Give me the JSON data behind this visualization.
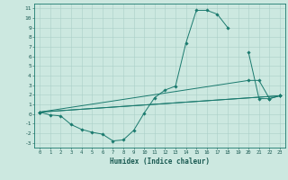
{
  "xlabel": "Humidex (Indice chaleur)",
  "bg_color": "#cce8e0",
  "grid_color": "#aacfc8",
  "line_color": "#1a7a6e",
  "xlim": [
    -0.5,
    23.5
  ],
  "ylim": [
    -3.5,
    11.5
  ],
  "xticks": [
    0,
    1,
    2,
    3,
    4,
    5,
    6,
    7,
    8,
    9,
    10,
    11,
    12,
    13,
    14,
    15,
    16,
    17,
    18,
    19,
    20,
    21,
    22,
    23
  ],
  "yticks": [
    -3,
    -2,
    -1,
    0,
    1,
    2,
    3,
    4,
    5,
    6,
    7,
    8,
    9,
    10,
    11
  ],
  "series1_x": [
    0,
    1,
    2,
    3,
    4,
    5,
    6,
    7,
    8,
    9,
    10,
    11,
    12,
    13,
    14,
    15,
    16,
    17,
    18,
    19,
    20,
    21,
    22,
    23
  ],
  "series1_y": [
    0.2,
    -0.1,
    -0.2,
    -1.1,
    -1.6,
    -1.9,
    -2.1,
    -2.8,
    -2.7,
    -1.7,
    0.1,
    1.7,
    2.5,
    2.9,
    7.4,
    10.8,
    10.8,
    10.4,
    9.0,
    null,
    6.4,
    1.6,
    1.6,
    1.9
  ],
  "series2_x": [
    0,
    23
  ],
  "series2_y": [
    0.2,
    1.9
  ],
  "series3_x": [
    0,
    20,
    21,
    22,
    23
  ],
  "series3_y": [
    0.2,
    3.5,
    3.5,
    1.6,
    1.9
  ],
  "series4_x": [
    0,
    23
  ],
  "series4_y": [
    0.2,
    1.9
  ]
}
